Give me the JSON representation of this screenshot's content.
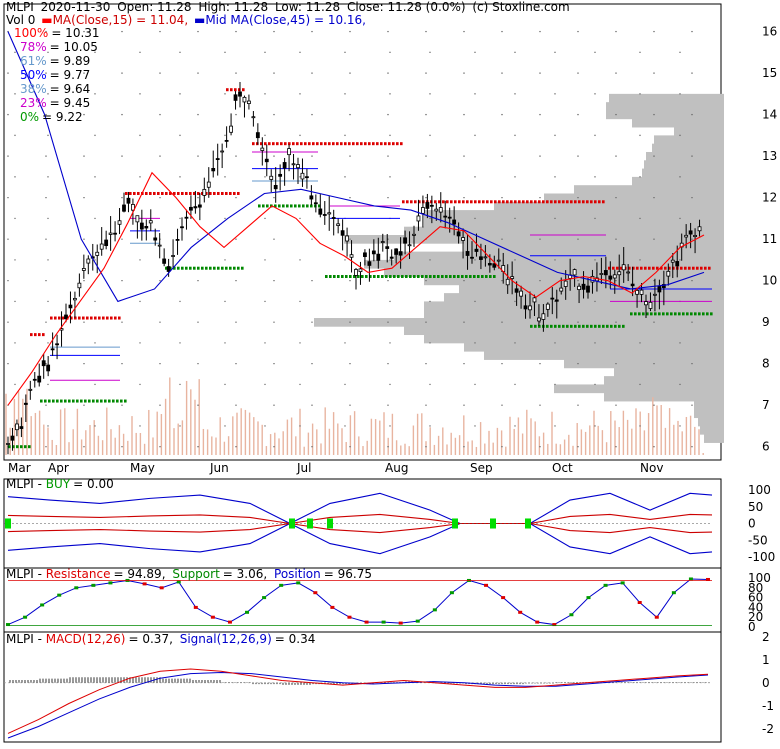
{
  "header": {
    "symbol": "MLPI",
    "date": "2020-11-30",
    "open": "Open: 11.28",
    "high": "High: 11.28",
    "low": "Low: 11.28",
    "close": "Close: 11.28 (0.0%)",
    "source": "(c) Stoxline.com",
    "vol": "Vol 0",
    "ma15": "MA(Close,15) = 11.04,",
    "ma45": "Mid MA(Close,45) = 10.16,"
  },
  "fib_levels": [
    {
      "label": "100%",
      "value": "= 10.31",
      "color": "#ff0000"
    },
    {
      "label": "78%",
      "value": "= 10.05",
      "color": "#cc00cc"
    },
    {
      "label": "61%",
      "value": "= 9.89",
      "color": "#6699cc"
    },
    {
      "label": "50%",
      "value": "= 9.77",
      "color": "#0000ff"
    },
    {
      "label": "38%",
      "value": "= 9.64",
      "color": "#6699cc"
    },
    {
      "label": "23%",
      "value": "= 9.45",
      "color": "#cc00cc"
    },
    {
      "label": "0%",
      "value": "= 9.22",
      "color": "#009900"
    }
  ],
  "panel_buy": {
    "sym": "MLPI",
    "name": "BUY",
    "value": "= 0.00"
  },
  "panel_rsp": {
    "sym": "MLPI",
    "res_name": "Resistance",
    "res_val": "= 94.89,",
    "sup_name": "Support",
    "sup_val": "= 3.06,",
    "pos_name": "Position",
    "pos_val": "= 96.75"
  },
  "panel_macd": {
    "sym": "MLPI",
    "macd_name": "MACD(12,26)",
    "macd_val": "= 0.37,",
    "sig_name": "Signal(12,26,9)",
    "sig_val": "= 0.34"
  },
  "colors": {
    "up": "#000000",
    "ma15": "#ff0000",
    "ma45": "#0000cc",
    "support": "#008800",
    "resistance": "#dd0000",
    "volume": "#e8b4a0",
    "profile": "#c0c0c0"
  },
  "chart_data": [
    {
      "type": "line",
      "title": "MLPI 2020-11-30",
      "x_labels": [
        "Mar",
        "Apr",
        "May",
        "Jun",
        "Jul",
        "Aug",
        "Sep",
        "Oct",
        "Nov"
      ],
      "y_ticks": [
        6,
        7,
        8,
        9,
        10,
        11,
        12,
        13,
        14,
        15,
        16
      ],
      "ylim": [
        5.8,
        16.4
      ],
      "series": [
        {
          "name": "Close",
          "values": [
            6.0,
            6.6,
            7.6,
            8.0,
            8.8,
            9.6,
            10.4,
            10.9,
            11.3,
            12.0,
            11.3,
            11.2,
            10.4,
            11.2,
            11.8,
            12.4,
            13.0,
            14.3,
            14.5,
            13.3,
            12.2,
            13.1,
            12.5,
            12.0,
            11.6,
            11.2,
            10.3,
            10.5,
            10.9,
            10.6,
            11.0,
            11.7,
            11.8,
            11.4,
            11.0,
            10.6,
            10.4,
            10.3,
            9.9,
            9.4,
            9.2,
            9.6,
            10.0,
            9.9,
            10.1,
            10.2,
            10.3,
            9.7,
            9.6,
            10.0,
            10.6,
            11.2,
            11.3
          ]
        },
        {
          "name": "MA(Close,15)",
          "values": [
            7.0,
            7.8,
            8.7,
            9.5,
            10.3,
            11.4,
            12.6,
            12.0,
            11.3,
            10.8,
            11.3,
            11.8,
            11.5,
            10.9,
            10.6,
            10.2,
            10.3,
            10.8,
            11.3,
            11.2,
            10.6,
            10.0,
            9.6,
            10.0,
            10.1,
            10.0,
            9.7,
            10.2,
            10.8,
            11.1
          ]
        },
        {
          "name": "MA(Close,45)",
          "values": [
            16.0,
            14.0,
            11.0,
            9.5,
            9.8,
            10.8,
            11.5,
            12.1,
            12.2,
            12.0,
            11.8,
            11.7,
            11.4,
            11.0,
            10.6,
            10.2,
            10.0,
            9.8,
            9.9,
            10.2
          ]
        }
      ],
      "support_lines": [
        6.0,
        7.1,
        9.2,
        10.3,
        10.1,
        8.8
      ],
      "resistance_lines": [
        8.7,
        9.1,
        12.1,
        13.3,
        14.6,
        11.9,
        10.3
      ]
    },
    {
      "type": "line",
      "title": "BUY",
      "y_ticks": [
        100,
        50,
        0,
        -50,
        -100
      ],
      "ylim": [
        -100,
        100
      ]
    },
    {
      "type": "line",
      "title": "Resistance / Support / Position",
      "y_ticks": [
        100,
        80,
        60,
        40,
        20,
        0
      ],
      "ylim": [
        0,
        100
      ]
    },
    {
      "type": "line",
      "title": "MACD(12,26) / Signal(12,26,9)",
      "y_ticks": [
        2,
        1,
        0,
        -1,
        -2
      ],
      "ylim": [
        -2.4,
        1.6
      ]
    }
  ]
}
